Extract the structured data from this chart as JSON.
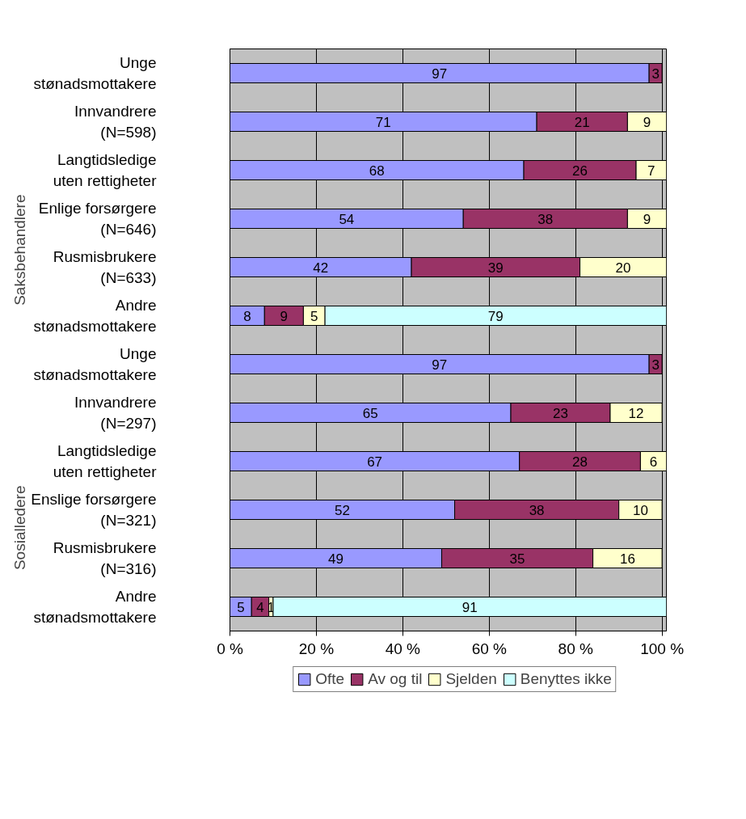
{
  "chart_data": {
    "type": "bar",
    "orientation": "horizontal",
    "stacked": true,
    "data_labels": true,
    "categories": [
      "Unge\nstønadsmottakere",
      "Innvandrere\n(N=598)",
      "Langtidsledige\nuten rettigheter",
      "Enlige forsørgere\n(N=646)",
      "Rusmisbrukere\n(N=633)",
      "Andre\nstønadsmottakere",
      "Unge\nstønadsmottakere",
      "Innvandrere\n(N=297)",
      "Langtidsledige\nuten rettigheter",
      "Enslige forsørgere\n(N=321)",
      "Rusmisbrukere\n(N=316)",
      "Andre\nstønadsmottakere"
    ],
    "series": [
      {
        "name": "Ofte",
        "color": "#9999ff",
        "values": [
          97,
          71,
          68,
          54,
          42,
          8,
          97,
          65,
          67,
          52,
          49,
          5
        ]
      },
      {
        "name": "Av og til",
        "color": "#993366",
        "values": [
          3,
          21,
          26,
          38,
          39,
          9,
          3,
          23,
          28,
          38,
          35,
          4
        ]
      },
      {
        "name": "Sjelden",
        "color": "#ffffcc",
        "values": [
          null,
          9,
          7,
          9,
          20,
          5,
          null,
          12,
          6,
          10,
          16,
          1
        ]
      },
      {
        "name": "Benyttes ikke",
        "color": "#ccffff",
        "values": [
          null,
          null,
          null,
          null,
          null,
          79,
          null,
          null,
          null,
          null,
          null,
          91
        ]
      }
    ],
    "xlim": [
      0,
      101
    ],
    "xticks": [
      {
        "value": 0,
        "label": "0 %"
      },
      {
        "value": 20,
        "label": "20 %"
      },
      {
        "value": 40,
        "label": "40 %"
      },
      {
        "value": 60,
        "label": "60 %"
      },
      {
        "value": 80,
        "label": "80 %"
      },
      {
        "value": 100,
        "label": "100 %"
      }
    ],
    "grid": "x",
    "legend": "bottom",
    "annotations": [
      "Saksbehandlere",
      "Sosialledere"
    ]
  }
}
